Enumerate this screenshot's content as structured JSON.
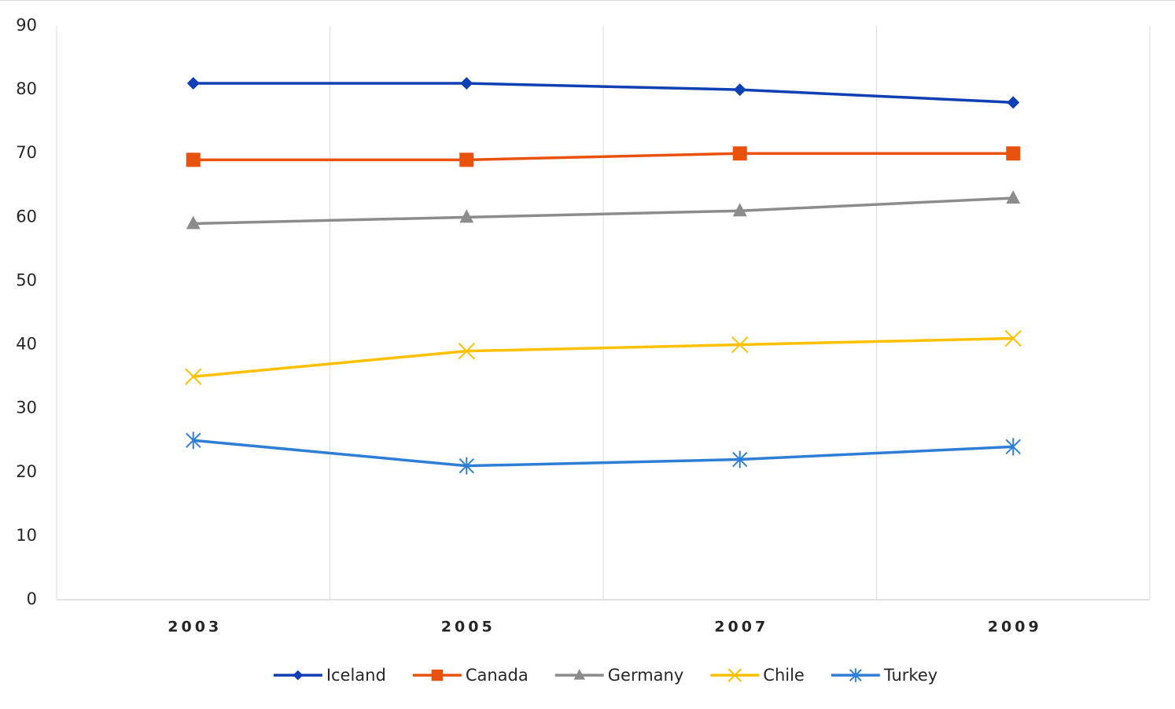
{
  "chart_data": {
    "type": "line",
    "categories": [
      "2003",
      "2005",
      "2007",
      "2009"
    ],
    "series": [
      {
        "name": "Iceland",
        "color": "#0e3fb3",
        "marker": "diamond",
        "values": [
          81,
          81,
          80,
          78
        ]
      },
      {
        "name": "Canada",
        "color": "#e8520c",
        "marker": "square",
        "values": [
          69,
          69,
          70,
          70
        ]
      },
      {
        "name": "Germany",
        "color": "#8c8c8c",
        "marker": "triangle",
        "values": [
          59,
          60,
          61,
          63
        ]
      },
      {
        "name": "Chile",
        "color": "#ffc000",
        "marker": "x",
        "values": [
          35,
          39,
          40,
          41
        ]
      },
      {
        "name": "Turkey",
        "color": "#2f7ed6",
        "marker": "star",
        "values": [
          25,
          21,
          22,
          24
        ]
      }
    ],
    "ylim": [
      0,
      90
    ],
    "yticks": [
      0,
      10,
      20,
      30,
      40,
      50,
      60,
      70,
      80,
      90
    ],
    "legend": "bottom"
  }
}
